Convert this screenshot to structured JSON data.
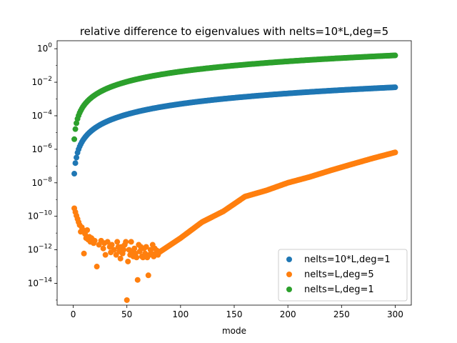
{
  "chart_data": {
    "type": "scatter",
    "title": "relative difference to eigenvalues with nelts=10*L,deg=5",
    "xlabel": "mode",
    "ylabel": "",
    "yscale": "log",
    "xlim": [
      -15,
      315
    ],
    "ylim": [
      5e-16,
      3
    ],
    "x_ticks": [
      0,
      50,
      100,
      150,
      200,
      250,
      300
    ],
    "x_tick_labels": [
      "0",
      "50",
      "100",
      "150",
      "200",
      "250",
      "300"
    ],
    "y_ticks": [
      {
        "value": 1,
        "base": "10",
        "exp": "0"
      },
      {
        "value": 0.01,
        "base": "10",
        "exp": "−2"
      },
      {
        "value": 0.0001,
        "base": "10",
        "exp": "−4"
      },
      {
        "value": 1e-06,
        "base": "10",
        "exp": "−6"
      },
      {
        "value": 1e-08,
        "base": "10",
        "exp": "−8"
      },
      {
        "value": 1e-10,
        "base": "10",
        "exp": "−10"
      },
      {
        "value": 1e-12,
        "base": "10",
        "exp": "−12"
      },
      {
        "value": 1e-14,
        "base": "10",
        "exp": "−14"
      }
    ],
    "legend_position": "lower-right",
    "grid": false,
    "series": [
      {
        "name": "nelts=10*L,deg=1",
        "color": "#1f77b4",
        "model": {
          "kind": "power",
          "x_start": 1,
          "x_end": 300,
          "step": 1,
          "y_at_1": 3.5e-08,
          "y_at_300": 0.005
        },
        "points": [
          [
            1,
            3.5e-08
          ],
          [
            2,
            1.5e-07
          ],
          [
            3,
            3.2e-07
          ]
        ]
      },
      {
        "name": "nelts=L,deg=5",
        "color": "#ff7f0e",
        "model": {
          "kind": "loginterp",
          "x_start": 80,
          "x_end": 300,
          "step": 1,
          "anchors": [
            [
              80,
              7e-13
            ],
            [
              100,
              5e-12
            ],
            [
              120,
              4.5e-11
            ],
            [
              140,
              2e-10
            ],
            [
              160,
              1.5e-09
            ],
            [
              180,
              3.5e-09
            ],
            [
              200,
              1e-08
            ],
            [
              220,
              2.2e-08
            ],
            [
              240,
              5.5e-08
            ],
            [
              260,
              1.3e-07
            ],
            [
              280,
              3e-07
            ],
            [
              300,
              6.5e-07
            ]
          ]
        },
        "points": [
          [
            1,
            3e-10
          ],
          [
            2,
            1.8e-10
          ],
          [
            3,
            1.1e-10
          ],
          [
            4,
            7e-11
          ],
          [
            5,
            4.5e-11
          ],
          [
            6,
            3e-11
          ],
          [
            7,
            1.2e-11
          ],
          [
            8,
            2.2e-11
          ],
          [
            9,
            1.5e-11
          ],
          [
            10,
            6e-13
          ],
          [
            11,
            9e-12
          ],
          [
            12,
            5e-12
          ],
          [
            13,
            1.5e-11
          ],
          [
            14,
            4e-12
          ],
          [
            15,
            6e-12
          ],
          [
            16,
            3e-12
          ],
          [
            17,
            5e-12
          ],
          [
            18,
            4e-12
          ],
          [
            19,
            2.5e-12
          ],
          [
            20,
            3.5e-12
          ],
          [
            22,
            1e-13
          ],
          [
            24,
            2e-12
          ],
          [
            26,
            3.5e-12
          ],
          [
            28,
            1.2e-12
          ],
          [
            29,
            2.5e-12
          ],
          [
            30,
            5e-13
          ],
          [
            32,
            3e-12
          ],
          [
            34,
            1.5e-12
          ],
          [
            35,
            7e-13
          ],
          [
            36,
            2e-12
          ],
          [
            38,
            1e-12
          ],
          [
            40,
            5e-13
          ],
          [
            41,
            3e-12
          ],
          [
            42,
            1.5e-12
          ],
          [
            43,
            8e-13
          ],
          [
            44,
            3e-13
          ],
          [
            45,
            1.5e-12
          ],
          [
            46,
            6e-13
          ],
          [
            47,
            1e-12
          ],
          [
            48,
            2e-12
          ],
          [
            49,
            3e-12
          ],
          [
            50,
            1e-15
          ],
          [
            51,
            2e-13
          ],
          [
            52,
            1e-12
          ],
          [
            53,
            5e-13
          ],
          [
            54,
            3e-12
          ],
          [
            55,
            8e-13
          ],
          [
            56,
            4e-13
          ],
          [
            57,
            1.2e-12
          ],
          [
            58,
            6e-13
          ],
          [
            59,
            3.5e-13
          ],
          [
            60,
            1.6e-14
          ],
          [
            61,
            2e-12
          ],
          [
            62,
            8e-13
          ],
          [
            63,
            1.5e-12
          ],
          [
            64,
            4e-13
          ],
          [
            65,
            3.5e-13
          ],
          [
            66,
            1.2e-12
          ],
          [
            67,
            6e-13
          ],
          [
            68,
            1.5e-12
          ],
          [
            69,
            3.5e-13
          ],
          [
            70,
            3e-14
          ],
          [
            71,
            5e-13
          ],
          [
            72,
            1e-12
          ],
          [
            73,
            6e-13
          ],
          [
            74,
            2e-12
          ],
          [
            75,
            4e-13
          ],
          [
            76,
            1.2e-12
          ],
          [
            77,
            6e-13
          ],
          [
            78,
            9e-13
          ],
          [
            79,
            5e-13
          ]
        ]
      },
      {
        "name": "nelts=L,deg=1",
        "color": "#2ca02c",
        "model": {
          "kind": "power",
          "x_start": 1,
          "x_end": 300,
          "step": 1,
          "y_at_1": 4e-06,
          "y_at_300": 0.4
        },
        "points": [
          [
            1,
            4e-06
          ],
          [
            2,
            1.6e-05
          ],
          [
            3,
            3.6e-05
          ]
        ]
      }
    ]
  }
}
